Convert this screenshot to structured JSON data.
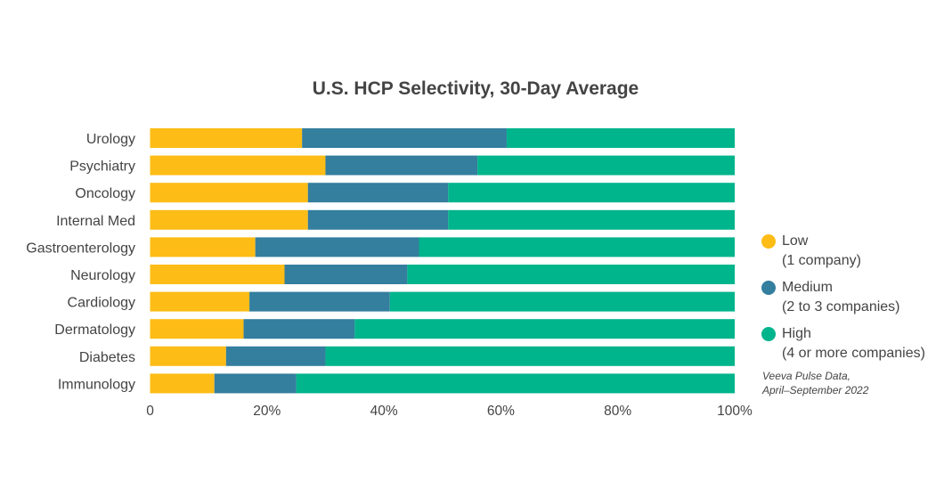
{
  "chart_data": {
    "type": "bar",
    "orientation": "horizontal",
    "stacked": true,
    "title": "U.S. HCP Selectivity, 30-Day Average",
    "xlabel": "",
    "ylabel": "",
    "xlim": [
      0,
      100
    ],
    "x_ticks": [
      "0",
      "20%",
      "40%",
      "60%",
      "80%",
      "100%"
    ],
    "x_tick_values": [
      0,
      20,
      40,
      60,
      80,
      100
    ],
    "grid": false,
    "categories": [
      "Urology",
      "Psychiatry",
      "Oncology",
      "Internal Med",
      "Gastroenterology",
      "Neurology",
      "Cardiology",
      "Dermatology",
      "Diabetes",
      "Immunology"
    ],
    "series": [
      {
        "name": "Low",
        "sublabel": "(1 company)",
        "color": "#FDBC16",
        "values": [
          26,
          30,
          27,
          27,
          18,
          23,
          17,
          16,
          13,
          11
        ]
      },
      {
        "name": "Medium",
        "sublabel": "(2 to 3 companies)",
        "color": "#347E9E",
        "values": [
          35,
          26,
          24,
          24,
          28,
          21,
          24,
          19,
          17,
          14
        ]
      },
      {
        "name": "High",
        "sublabel": "(4 or more companies)",
        "color": "#00B48C",
        "values": [
          39,
          44,
          49,
          49,
          54,
          56,
          59,
          65,
          70,
          75
        ]
      }
    ],
    "legend_position": "right",
    "source_note": [
      "Veeva Pulse Data,",
      "April–September 2022"
    ]
  }
}
